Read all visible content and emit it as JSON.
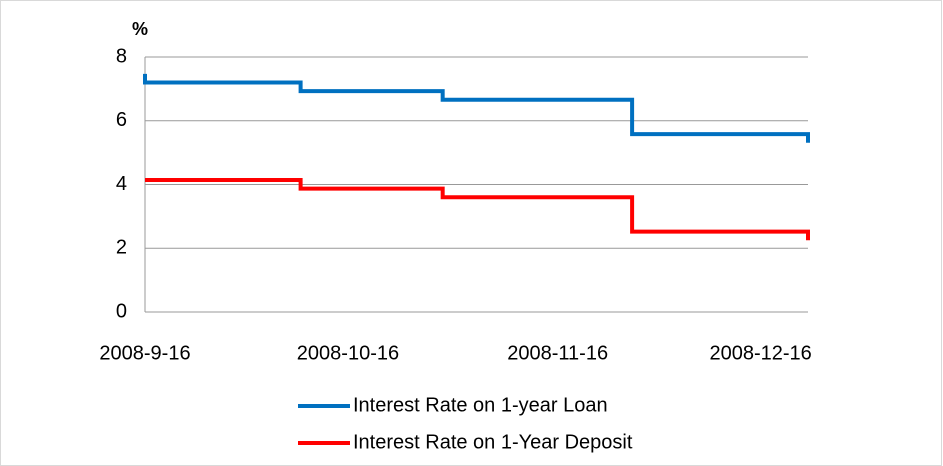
{
  "chart_data": {
    "type": "step-line",
    "y_label": "%",
    "x": [
      "2008-9-16",
      "2008-9-16",
      "2008-10-9",
      "2008-10-30",
      "2008-11-27",
      "2008-12-23"
    ],
    "xlim": [
      "2008-9-16",
      "2008-12-23"
    ],
    "xticks": [
      "2008-9-16",
      "2008-10-16",
      "2008-11-16",
      "2008-12-16"
    ],
    "ylim": [
      0,
      8
    ],
    "yticks": [
      0,
      2,
      4,
      6,
      8
    ],
    "grid": true,
    "series": [
      {
        "name": "Interest Rate on 1-year Loan",
        "color": "#0070c0",
        "values": [
          7.47,
          7.2,
          6.93,
          6.66,
          5.58,
          5.31
        ]
      },
      {
        "name": "Interest Rate on 1-Year Deposit",
        "color": "#ff0000",
        "values": [
          4.14,
          4.14,
          3.87,
          3.6,
          2.52,
          2.25
        ]
      }
    ]
  }
}
